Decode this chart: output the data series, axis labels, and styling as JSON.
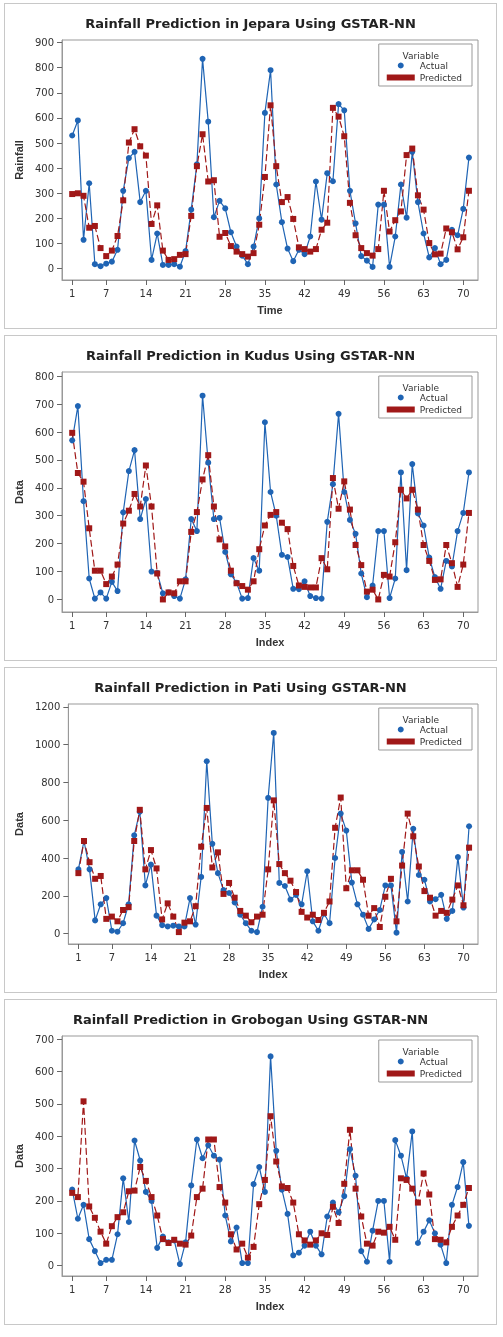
{
  "chart_data": [
    {
      "type": "line",
      "title": "Rainfall Prediction in Jepara Using GSTAR-NN",
      "xlabel": "Time",
      "ylabel": "Rainfall",
      "legend_title": "Variable",
      "legend": "top right",
      "grid": false,
      "x": [
        1,
        2,
        3,
        4,
        5,
        6,
        7,
        8,
        9,
        10,
        11,
        12,
        13,
        14,
        15,
        16,
        17,
        18,
        19,
        20,
        21,
        22,
        23,
        24,
        25,
        26,
        27,
        28,
        29,
        30,
        31,
        32,
        33,
        34,
        35,
        36,
        37,
        38,
        39,
        40,
        41,
        42,
        43,
        44,
        45,
        46,
        47,
        48,
        49,
        50,
        51,
        52,
        53,
        54,
        55,
        56,
        57,
        58,
        59,
        60,
        61,
        62,
        63,
        64,
        65,
        66,
        67,
        68,
        69,
        70,
        71
      ],
      "xlim": [
        -0.8,
        72.6
      ],
      "xticks": [
        1,
        7,
        14,
        21,
        28,
        35,
        42,
        49,
        56,
        63,
        70
      ],
      "ylim": [
        -45,
        910
      ],
      "yticks": [
        0,
        100,
        200,
        300,
        400,
        500,
        600,
        700,
        800,
        900
      ],
      "series": [
        {
          "name": "Actual",
          "color": "#1f64b4",
          "marker": "circle",
          "line_style": "solid",
          "values": [
            530,
            590,
            115,
            340,
            18,
            10,
            20,
            28,
            75,
            310,
            440,
            465,
            265,
            310,
            35,
            140,
            15,
            15,
            18,
            8,
            70,
            235,
            415,
            835,
            585,
            205,
            270,
            240,
            145,
            88,
            52,
            18,
            88,
            200,
            620,
            790,
            335,
            185,
            80,
            30,
            75,
            58,
            128,
            347,
            195,
            380,
            348,
            655,
            630,
            310,
            180,
            50,
            32,
            7,
            255,
            255,
            7,
            128,
            335,
            203,
            465,
            265,
            140,
            45,
            82,
            18,
            35,
            155,
            133,
            238,
            442
          ]
        },
        {
          "name": "Predicted",
          "color": "#a01818",
          "marker": "square",
          "line_style": "dashed",
          "values": [
            297,
            300,
            290,
            163,
            170,
            82,
            50,
            72,
            130,
            272,
            502,
            555,
            487,
            450,
            178,
            252,
            72,
            35,
            38,
            55,
            58,
            210,
            408,
            535,
            347,
            352,
            127,
            142,
            90,
            68,
            58,
            48,
            62,
            175,
            365,
            650,
            408,
            265,
            285,
            198,
            85,
            78,
            68,
            78,
            155,
            183,
            640,
            605,
            527,
            262,
            133,
            82,
            62,
            52,
            78,
            310,
            148,
            193,
            228,
            452,
            478,
            292,
            235,
            102,
            57,
            60,
            160,
            145,
            77,
            125,
            310
          ]
        }
      ]
    },
    {
      "type": "line",
      "title": "Rainfall Prediction in Kudus Using GSTAR-NN",
      "xlabel": "Index",
      "ylabel": "Data",
      "legend_title": "Variable",
      "legend": "top right",
      "grid": false,
      "x": [
        1,
        2,
        3,
        4,
        5,
        6,
        7,
        8,
        9,
        10,
        11,
        12,
        13,
        14,
        15,
        16,
        17,
        18,
        19,
        20,
        21,
        22,
        23,
        24,
        25,
        26,
        27,
        28,
        29,
        30,
        31,
        32,
        33,
        34,
        35,
        36,
        37,
        38,
        39,
        40,
        41,
        42,
        43,
        44,
        45,
        46,
        47,
        48,
        49,
        50,
        51,
        52,
        53,
        54,
        55,
        56,
        57,
        58,
        59,
        60,
        61,
        62,
        63,
        64,
        65,
        66,
        67,
        68,
        69,
        70,
        71
      ],
      "xlim": [
        -0.8,
        72.6
      ],
      "xticks": [
        1,
        7,
        14,
        21,
        28,
        35,
        42,
        49,
        56,
        63,
        70
      ],
      "ylim": [
        -45,
        815
      ],
      "yticks": [
        0,
        100,
        200,
        300,
        400,
        500,
        600,
        700,
        800
      ],
      "series": [
        {
          "name": "Actual",
          "color": "#1f64b4",
          "marker": "circle",
          "line_style": "solid",
          "values": [
            570,
            693,
            352,
            75,
            3,
            25,
            3,
            63,
            30,
            312,
            460,
            535,
            288,
            360,
            100,
            95,
            22,
            25,
            12,
            3,
            72,
            288,
            245,
            730,
            490,
            288,
            292,
            170,
            90,
            60,
            3,
            5,
            148,
            103,
            635,
            385,
            300,
            160,
            152,
            38,
            37,
            65,
            12,
            5,
            3,
            278,
            413,
            665,
            385,
            285,
            235,
            93,
            8,
            50,
            245,
            245,
            5,
            75,
            455,
            105,
            485,
            308,
            265,
            150,
            80,
            38,
            138,
            118,
            245,
            310,
            455
          ]
        },
        {
          "name": "Predicted",
          "color": "#a01818",
          "marker": "square",
          "line_style": "dashed",
          "values": [
            597,
            453,
            422,
            255,
            103,
            103,
            55,
            82,
            125,
            272,
            318,
            378,
            333,
            480,
            333,
            93,
            0,
            25,
            22,
            65,
            65,
            242,
            313,
            430,
            517,
            333,
            215,
            190,
            103,
            58,
            48,
            35,
            65,
            180,
            265,
            303,
            313,
            275,
            252,
            120,
            50,
            45,
            43,
            43,
            148,
            108,
            435,
            325,
            423,
            322,
            195,
            123,
            28,
            35,
            0,
            88,
            82,
            205,
            393,
            362,
            393,
            322,
            195,
            138,
            70,
            72,
            195,
            130,
            45,
            125,
            310
          ]
        }
      ]
    },
    {
      "type": "line",
      "title": "Rainfall Prediction in Pati Using GSTAR-NN",
      "xlabel": "Index",
      "ylabel": "Data",
      "legend_title": "Variable",
      "legend": "top right",
      "grid": false,
      "x": [
        1,
        2,
        3,
        4,
        5,
        6,
        7,
        8,
        9,
        10,
        11,
        12,
        13,
        14,
        15,
        16,
        17,
        18,
        19,
        20,
        21,
        22,
        23,
        24,
        25,
        26,
        27,
        28,
        29,
        30,
        31,
        32,
        33,
        34,
        35,
        36,
        37,
        38,
        39,
        40,
        41,
        42,
        43,
        44,
        45,
        46,
        47,
        48,
        49,
        50,
        51,
        52,
        53,
        54,
        55,
        56,
        57,
        58,
        59,
        60,
        61,
        62,
        63,
        64,
        65,
        66,
        67,
        68,
        69,
        70,
        71
      ],
      "xlim": [
        -0.8,
        72.6
      ],
      "xticks": [
        1,
        7,
        14,
        21,
        28,
        35,
        42,
        49,
        56,
        63,
        70
      ],
      "ylim": [
        -55,
        1215
      ],
      "yticks": [
        0,
        200,
        400,
        600,
        800,
        1000,
        1200
      ],
      "series": [
        {
          "name": "Actual",
          "color": "#1f64b4",
          "marker": "circle",
          "line_style": "solid",
          "values": [
            340,
            490,
            340,
            70,
            155,
            188,
            15,
            10,
            55,
            155,
            520,
            645,
            255,
            365,
            95,
            45,
            38,
            42,
            38,
            38,
            188,
            48,
            300,
            912,
            475,
            320,
            230,
            215,
            165,
            100,
            55,
            15,
            8,
            142,
            718,
            1062,
            268,
            252,
            180,
            205,
            155,
            330,
            65,
            15,
            105,
            55,
            400,
            635,
            545,
            270,
            155,
            100,
            25,
            75,
            125,
            255,
            255,
            5,
            432,
            170,
            555,
            310,
            285,
            170,
            182,
            205,
            78,
            120,
            405,
            138,
            568
          ]
        },
        {
          "name": "Predicted",
          "color": "#a01818",
          "marker": "square",
          "line_style": "dashed",
          "values": [
            320,
            490,
            378,
            290,
            305,
            78,
            90,
            65,
            125,
            140,
            490,
            655,
            340,
            442,
            345,
            75,
            160,
            90,
            8,
            58,
            65,
            145,
            460,
            665,
            350,
            430,
            210,
            268,
            190,
            120,
            95,
            60,
            90,
            100,
            340,
            705,
            368,
            320,
            280,
            220,
            115,
            85,
            100,
            72,
            110,
            170,
            560,
            720,
            240,
            335,
            335,
            285,
            95,
            135,
            35,
            195,
            290,
            65,
            360,
            635,
            515,
            355,
            225,
            190,
            95,
            120,
            110,
            180,
            255,
            150,
            455
          ]
        }
      ]
    },
    {
      "type": "line",
      "title": "Rainfall Prediction in Grobogan Using GSTAR-NN",
      "xlabel": "Index",
      "ylabel": "Data",
      "legend_title": "Variable",
      "legend": "top right",
      "grid": false,
      "x": [
        1,
        2,
        3,
        4,
        5,
        6,
        7,
        8,
        9,
        10,
        11,
        12,
        13,
        14,
        15,
        16,
        17,
        18,
        19,
        20,
        21,
        22,
        23,
        24,
        25,
        26,
        27,
        28,
        29,
        30,
        31,
        32,
        33,
        34,
        35,
        36,
        37,
        38,
        39,
        40,
        41,
        42,
        43,
        44,
        45,
        46,
        47,
        48,
        49,
        50,
        51,
        52,
        53,
        54,
        55,
        56,
        57,
        58,
        59,
        60,
        61,
        62,
        63,
        64,
        65,
        66,
        67,
        68,
        69,
        70,
        71
      ],
      "xlim": [
        -0.8,
        72.6
      ],
      "xticks": [
        1,
        7,
        14,
        21,
        28,
        35,
        42,
        49,
        56,
        63,
        70
      ],
      "ylim": [
        -32,
        710
      ],
      "yticks": [
        0,
        100,
        200,
        300,
        400,
        500,
        600,
        700
      ],
      "series": [
        {
          "name": "Actual",
          "color": "#1f64b4",
          "marker": "circle",
          "line_style": "solid",
          "values": [
            235,
            145,
            188,
            82,
            45,
            8,
            18,
            18,
            97,
            270,
            135,
            387,
            325,
            228,
            200,
            55,
            90,
            72,
            78,
            5,
            72,
            248,
            390,
            332,
            372,
            340,
            328,
            155,
            75,
            118,
            8,
            8,
            252,
            305,
            228,
            647,
            355,
            235,
            160,
            32,
            40,
            62,
            105,
            62,
            35,
            152,
            195,
            165,
            215,
            360,
            278,
            45,
            12,
            108,
            200,
            200,
            12,
            388,
            340,
            270,
            415,
            70,
            105,
            140,
            100,
            65,
            8,
            188,
            243,
            320,
            123
          ]
        },
        {
          "name": "Predicted",
          "color": "#a01818",
          "marker": "square",
          "line_style": "dashed",
          "values": [
            225,
            212,
            508,
            183,
            148,
            105,
            68,
            122,
            150,
            165,
            230,
            232,
            305,
            262,
            212,
            155,
            82,
            70,
            80,
            68,
            65,
            93,
            212,
            238,
            390,
            390,
            243,
            195,
            97,
            50,
            68,
            25,
            58,
            190,
            265,
            462,
            322,
            245,
            240,
            195,
            97,
            78,
            65,
            78,
            100,
            95,
            182,
            132,
            253,
            420,
            238,
            152,
            68,
            62,
            105,
            102,
            120,
            80,
            270,
            265,
            238,
            195,
            285,
            220,
            82,
            80,
            72,
            120,
            155,
            188,
            240
          ]
        }
      ]
    }
  ]
}
